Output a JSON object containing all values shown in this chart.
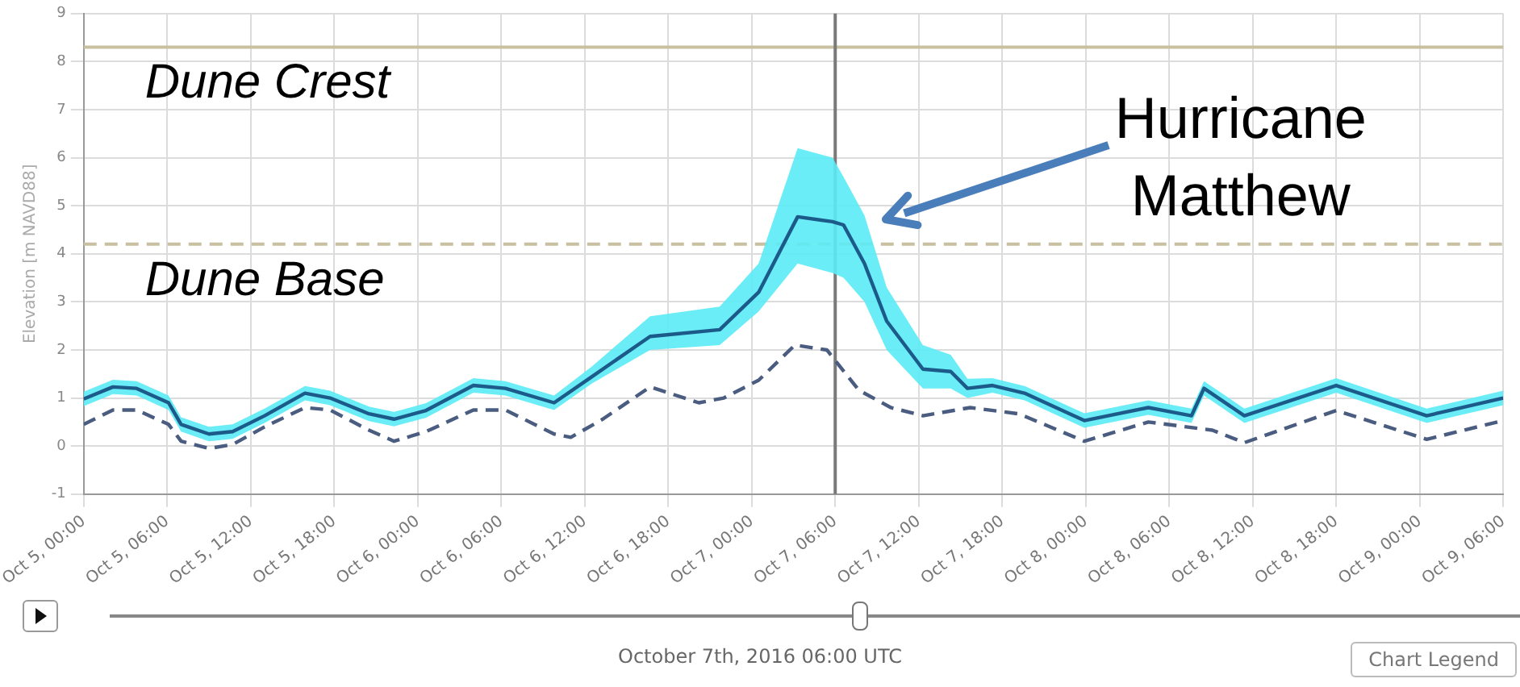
{
  "chart_data": {
    "type": "line",
    "ylabel": "Elevation [m NAVD88]",
    "xlim": [
      "2016-10-05T00:00",
      "2016-10-09T06:00"
    ],
    "xticks": [
      {
        "value": "2016-10-05T00:00",
        "label": "Oct 5, 00:00"
      },
      {
        "value": "2016-10-05T06:00",
        "label": "Oct 5, 06:00"
      },
      {
        "value": "2016-10-05T12:00",
        "label": "Oct 5, 12:00"
      },
      {
        "value": "2016-10-05T18:00",
        "label": "Oct 5, 18:00"
      },
      {
        "value": "2016-10-06T00:00",
        "label": "Oct 6, 00:00"
      },
      {
        "value": "2016-10-06T06:00",
        "label": "Oct 6, 06:00"
      },
      {
        "value": "2016-10-06T12:00",
        "label": "Oct 6, 12:00"
      },
      {
        "value": "2016-10-06T18:00",
        "label": "Oct 6, 18:00"
      },
      {
        "value": "2016-10-07T00:00",
        "label": "Oct 7, 00:00"
      },
      {
        "value": "2016-10-07T06:00",
        "label": "Oct 7, 06:00"
      },
      {
        "value": "2016-10-07T12:00",
        "label": "Oct 7, 12:00"
      },
      {
        "value": "2016-10-07T18:00",
        "label": "Oct 7, 18:00"
      },
      {
        "value": "2016-10-08T00:00",
        "label": "Oct 8, 00:00"
      },
      {
        "value": "2016-10-08T06:00",
        "label": "Oct 8, 06:00"
      },
      {
        "value": "2016-10-08T12:00",
        "label": "Oct 8, 12:00"
      },
      {
        "value": "2016-10-08T18:00",
        "label": "Oct 8, 18:00"
      },
      {
        "value": "2016-10-09T00:00",
        "label": "Oct 9, 00:00"
      },
      {
        "value": "2016-10-09T06:00",
        "label": "Oct 9, 06:00"
      }
    ],
    "ylim": [
      -1,
      9
    ],
    "yticks": [
      -1,
      0,
      1,
      2,
      3,
      4,
      5,
      6,
      7,
      8,
      9
    ],
    "grid": true,
    "marker": "none",
    "series": [
      {
        "color": "#1c5a8a",
        "line_style": "solid",
        "x": [
          "2016-10-05T00:00",
          "2016-10-05T02:06",
          "2016-10-05T03:48",
          "2016-10-05T06:06",
          "2016-10-05T07:00",
          "2016-10-05T09:00",
          "2016-10-05T10:42",
          "2016-10-05T13:00",
          "2016-10-05T15:54",
          "2016-10-05T17:42",
          "2016-10-05T20:30",
          "2016-10-05T22:18",
          "2016-10-06T00:36",
          "2016-10-06T04:00",
          "2016-10-06T06:18",
          "2016-10-06T09:48",
          "2016-10-06T12:30",
          "2016-10-06T16:42",
          "2016-10-06T21:42",
          "2016-10-07T00:30",
          "2016-10-07T03:18",
          "2016-10-07T05:48",
          "2016-10-07T06:36",
          "2016-10-07T08:06",
          "2016-10-07T09:42",
          "2016-10-07T12:18",
          "2016-10-07T14:18",
          "2016-10-07T15:30",
          "2016-10-07T17:18",
          "2016-10-07T19:36",
          "2016-10-07T23:54",
          "2016-10-08T04:30",
          "2016-10-08T07:36",
          "2016-10-08T08:30",
          "2016-10-08T11:24",
          "2016-10-08T18:00",
          "2016-10-09T00:30",
          "2016-10-09T06:00"
        ],
        "values": [
          0.98,
          1.23,
          1.2,
          0.9,
          0.45,
          0.25,
          0.3,
          0.63,
          1.1,
          1.0,
          0.67,
          0.56,
          0.74,
          1.26,
          1.2,
          0.9,
          1.44,
          2.28,
          2.42,
          3.2,
          4.77,
          4.67,
          4.6,
          3.8,
          2.6,
          1.6,
          1.55,
          1.2,
          1.26,
          1.1,
          0.53,
          0.8,
          0.63,
          1.2,
          0.63,
          1.26,
          0.63,
          1.0
        ],
        "lower": [
          0.83,
          1.08,
          1.05,
          0.75,
          0.3,
          0.1,
          0.15,
          0.48,
          0.95,
          0.85,
          0.52,
          0.41,
          0.59,
          1.11,
          1.05,
          0.75,
          1.3,
          2.0,
          2.1,
          2.8,
          3.8,
          3.6,
          3.5,
          3.0,
          2.0,
          1.2,
          1.2,
          1.0,
          1.11,
          0.95,
          0.38,
          0.65,
          0.48,
          1.05,
          0.48,
          1.11,
          0.48,
          0.85
        ],
        "upper": [
          1.13,
          1.38,
          1.35,
          1.05,
          0.6,
          0.4,
          0.45,
          0.78,
          1.25,
          1.15,
          0.82,
          0.71,
          0.89,
          1.41,
          1.35,
          1.05,
          1.65,
          2.7,
          2.9,
          3.8,
          6.2,
          6.0,
          5.6,
          4.8,
          3.3,
          2.1,
          1.9,
          1.4,
          1.41,
          1.25,
          0.68,
          0.95,
          0.78,
          1.35,
          0.78,
          1.41,
          0.78,
          1.15
        ]
      },
      {
        "color": "#4a5d80",
        "line_style": "dashed",
        "x": [
          "2016-10-05T00:00",
          "2016-10-05T02:06",
          "2016-10-05T03:48",
          "2016-10-05T06:06",
          "2016-10-05T07:00",
          "2016-10-05T09:00",
          "2016-10-05T10:42",
          "2016-10-05T13:00",
          "2016-10-05T15:54",
          "2016-10-05T17:42",
          "2016-10-05T20:30",
          "2016-10-05T22:18",
          "2016-10-06T00:36",
          "2016-10-06T04:00",
          "2016-10-06T06:18",
          "2016-10-06T09:48",
          "2016-10-06T11:00",
          "2016-10-06T13:18",
          "2016-10-06T16:42",
          "2016-10-06T20:12",
          "2016-10-06T22:00",
          "2016-10-07T00:30",
          "2016-10-07T03:06",
          "2016-10-07T05:24",
          "2016-10-07T07:42",
          "2016-10-07T10:00",
          "2016-10-07T12:18",
          "2016-10-07T15:42",
          "2016-10-07T19:12",
          "2016-10-07T23:54",
          "2016-10-08T04:30",
          "2016-10-08T09:06",
          "2016-10-08T11:24",
          "2016-10-08T18:00",
          "2016-10-09T00:30",
          "2016-10-09T06:00"
        ],
        "values": [
          0.45,
          0.75,
          0.75,
          0.45,
          0.1,
          -0.05,
          0.03,
          0.4,
          0.8,
          0.75,
          0.33,
          0.1,
          0.3,
          0.75,
          0.75,
          0.25,
          0.18,
          0.56,
          1.23,
          0.9,
          1.0,
          1.37,
          2.1,
          2.0,
          1.16,
          0.8,
          0.63,
          0.8,
          0.67,
          0.1,
          0.5,
          0.33,
          0.07,
          0.74,
          0.14,
          0.53
        ]
      }
    ],
    "ref_lines": [
      {
        "axis": "y",
        "value": 8.3,
        "label": "Dune Crest",
        "color": "#c8c0a0",
        "line_style": "solid"
      },
      {
        "axis": "y",
        "value": 4.2,
        "label": "Dune Base",
        "color": "#c8c0a0",
        "line_style": "dashed"
      },
      {
        "axis": "x",
        "value": "2016-10-07T06:00",
        "color": "#7a7a7a",
        "line_style": "solid"
      }
    ],
    "annotations": [
      "Hurricane Matthew",
      "October 7th, 2016 06:00 UTC",
      "Chart Legend"
    ]
  }
}
